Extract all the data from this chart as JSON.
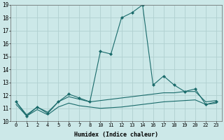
{
  "xlabel": "Humidex (Indice chaleur)",
  "background_color": "#cce8e8",
  "grid_color": "#b0d0d0",
  "line_color": "#1a6b6b",
  "x_positions": [
    0,
    1,
    2,
    3,
    4,
    5,
    6,
    7,
    8,
    9,
    10,
    11,
    12,
    13,
    14,
    15,
    16,
    17,
    18,
    19
  ],
  "x_labels": [
    "0",
    "1",
    "2",
    "4",
    "5",
    "6",
    "7",
    "8",
    "10",
    "11",
    "12",
    "13",
    "14",
    "16",
    "17",
    "18",
    "19",
    "20",
    "22",
    "23"
  ],
  "ylim": [
    10,
    19
  ],
  "yticks": [
    10,
    11,
    12,
    13,
    14,
    15,
    16,
    17,
    18,
    19
  ],
  "series1_y": [
    11.5,
    10.4,
    11.1,
    10.6,
    11.5,
    12.1,
    11.8,
    11.5,
    15.4,
    15.2,
    18.0,
    18.4,
    19.0,
    12.8,
    13.5,
    12.8,
    12.3,
    12.5,
    11.3,
    11.5
  ],
  "series2_y": [
    11.5,
    10.5,
    11.1,
    10.7,
    11.5,
    11.9,
    11.7,
    11.5,
    11.6,
    11.7,
    11.8,
    11.9,
    12.0,
    12.1,
    12.2,
    12.2,
    12.3,
    12.3,
    11.5,
    11.6
  ],
  "series3_y": [
    11.3,
    10.4,
    10.9,
    10.5,
    11.1,
    11.4,
    11.2,
    11.1,
    11.0,
    11.05,
    11.1,
    11.2,
    11.3,
    11.4,
    11.5,
    11.55,
    11.6,
    11.65,
    11.3,
    11.4
  ]
}
